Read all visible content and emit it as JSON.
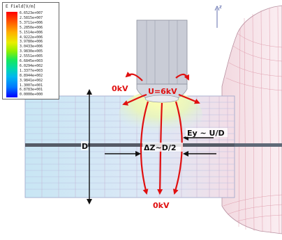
{
  "legend": {
    "title": "E Field[V/m]",
    "values": [
      "6.6523e+007",
      "2.5815e+007",
      "5.3711e+006",
      "5.2850e+006",
      "5.1514e+006",
      "4.9222e+006",
      "3.9780e+006",
      "3.0433e+006",
      "3.9830e+005",
      "2.5551e+005",
      "6.6845e+003",
      "6.0294e+002",
      "1.3377e+003",
      "8.8944e+002",
      "3.9841e+002",
      "1.3007e+001",
      "6.8783e+001",
      "0.0000e+000"
    ]
  },
  "labels": {
    "zero_left": "0kV",
    "u_label": "U=6kV",
    "ey_label": "Ey ~ U/D",
    "dz_label": "ΔZ~D/2",
    "d_label": "D",
    "zero_bottom": "0kV",
    "axis_z": "z"
  },
  "colors": {
    "arrow": "#e01010",
    "electrode": "#c9ccd6",
    "mesh_line": "#b8c0e0",
    "mesh_red": "#e07070"
  }
}
